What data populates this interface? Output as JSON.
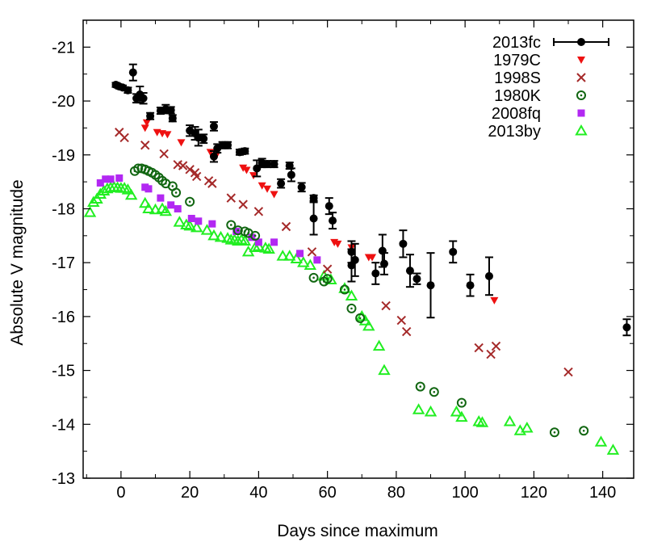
{
  "chart_data": {
    "type": "scatter",
    "xlabel": "Days since maximum",
    "ylabel": "Absolute V magnitude",
    "xlim": [
      -11,
      149
    ],
    "ylim": [
      -13,
      -21.5
    ],
    "y_inverted": true,
    "xticks": [
      0,
      20,
      40,
      60,
      80,
      100,
      120,
      140
    ],
    "yticks": [
      -13,
      -14,
      -15,
      -16,
      -17,
      -18,
      -19,
      -20,
      -21
    ],
    "grid": false,
    "legend_position": "top-right",
    "series": [
      {
        "name": "2013fc",
        "marker": "filled-circle-errorbar",
        "color": "#000000",
        "points": [
          {
            "x": -1.5,
            "y": -20.3,
            "err": 0.04
          },
          {
            "x": -0.5,
            "y": -20.27,
            "err": 0.04
          },
          {
            "x": 0.5,
            "y": -20.25,
            "err": 0.04
          },
          {
            "x": 2,
            "y": -20.2,
            "err": 0.05
          },
          {
            "x": 3.5,
            "y": -20.53,
            "err": 0.15
          },
          {
            "x": 4.5,
            "y": -20.05,
            "err": 0.08
          },
          {
            "x": 5.5,
            "y": -20.12,
            "err": 0.15
          },
          {
            "x": 6.5,
            "y": -20.05,
            "err": 0.1
          },
          {
            "x": 8.5,
            "y": -19.72,
            "err": 0.06
          },
          {
            "x": 11.5,
            "y": -19.82,
            "err": 0.06
          },
          {
            "x": 13,
            "y": -19.85,
            "err": 0.08
          },
          {
            "x": 14.5,
            "y": -19.83,
            "err": 0.06
          },
          {
            "x": 15,
            "y": -19.68,
            "err": 0.06
          },
          {
            "x": 20,
            "y": -19.45,
            "err": 0.1
          },
          {
            "x": 21.5,
            "y": -19.4,
            "err": 0.12
          },
          {
            "x": 22.5,
            "y": -19.32,
            "err": 0.15
          },
          {
            "x": 24,
            "y": -19.3,
            "err": 0.08
          },
          {
            "x": 27,
            "y": -19.53,
            "err": 0.08
          },
          {
            "x": 27,
            "y": -18.97,
            "err": 0.1
          },
          {
            "x": 28,
            "y": -19.12,
            "err": 0.08
          },
          {
            "x": 29.5,
            "y": -19.18,
            "err": 0.06
          },
          {
            "x": 31,
            "y": -19.18,
            "err": 0.06
          },
          {
            "x": 34.5,
            "y": -19.05,
            "err": 0.05
          },
          {
            "x": 36,
            "y": -19.07,
            "err": 0.05
          },
          {
            "x": 39.5,
            "y": -18.75,
            "err": 0.15
          },
          {
            "x": 41,
            "y": -18.85,
            "err": 0.08
          },
          {
            "x": 42.5,
            "y": -18.83,
            "err": 0.06
          },
          {
            "x": 44.5,
            "y": -18.83,
            "err": 0.06
          },
          {
            "x": 46.5,
            "y": -18.47,
            "err": 0.08
          },
          {
            "x": 49,
            "y": -18.8,
            "err": 0.06
          },
          {
            "x": 49.5,
            "y": -18.63,
            "err": 0.12
          },
          {
            "x": 52.5,
            "y": -18.4,
            "err": 0.08
          },
          {
            "x": 56,
            "y": -18.2,
            "err": 0.05
          },
          {
            "x": 56,
            "y": -17.82,
            "err": 0.3
          },
          {
            "x": 60.5,
            "y": -18.05,
            "err": 0.15
          },
          {
            "x": 61.5,
            "y": -17.78,
            "err": 0.15
          },
          {
            "x": 67,
            "y": -17.2,
            "err": 0.2
          },
          {
            "x": 67,
            "y": -16.95,
            "err": 0.3
          },
          {
            "x": 68,
            "y": -17.05,
            "err": 0.3
          },
          {
            "x": 74,
            "y": -16.8,
            "err": 0.2
          },
          {
            "x": 76,
            "y": -17.22,
            "err": 0.3
          },
          {
            "x": 76.5,
            "y": -16.98,
            "err": 0.2
          },
          {
            "x": 82,
            "y": -17.35,
            "err": 0.25
          },
          {
            "x": 84,
            "y": -16.85,
            "err": 0.3
          },
          {
            "x": 86,
            "y": -16.7,
            "err": 0.1
          },
          {
            "x": 90,
            "y": -16.58,
            "err": 0.6
          },
          {
            "x": 96.5,
            "y": -17.2,
            "err": 0.2
          },
          {
            "x": 101.5,
            "y": -16.58,
            "err": 0.2
          },
          {
            "x": 107,
            "y": -16.75,
            "err": 0.35
          },
          {
            "x": 147,
            "y": -15.8,
            "err": 0.15
          }
        ]
      },
      {
        "name": "1979C",
        "marker": "filled-triangle-down",
        "color": "#ee1111",
        "points": [
          {
            "x": 7,
            "y": -19.5
          },
          {
            "x": 7.5,
            "y": -19.6
          },
          {
            "x": 10.5,
            "y": -19.42
          },
          {
            "x": 12,
            "y": -19.4
          },
          {
            "x": 13.5,
            "y": -19.38
          },
          {
            "x": 17.5,
            "y": -19.23
          },
          {
            "x": 26,
            "y": -19.05
          },
          {
            "x": 27.5,
            "y": -18.97
          },
          {
            "x": 35.5,
            "y": -18.76
          },
          {
            "x": 36.5,
            "y": -18.72
          },
          {
            "x": 38.5,
            "y": -18.62
          },
          {
            "x": 41,
            "y": -18.43
          },
          {
            "x": 42.5,
            "y": -18.37
          },
          {
            "x": 44.5,
            "y": -18.27
          },
          {
            "x": 62,
            "y": -17.38
          },
          {
            "x": 63,
            "y": -17.35
          },
          {
            "x": 67,
            "y": -17.28
          },
          {
            "x": 72,
            "y": -17.1
          },
          {
            "x": 73,
            "y": -17.1
          },
          {
            "x": 108.5,
            "y": -16.3
          }
        ]
      },
      {
        "name": "1998S",
        "marker": "cross",
        "color": "#a52a2a",
        "points": [
          {
            "x": -0.5,
            "y": -19.42
          },
          {
            "x": 1,
            "y": -19.32
          },
          {
            "x": 7,
            "y": -19.18
          },
          {
            "x": 12.5,
            "y": -19.02
          },
          {
            "x": 16.5,
            "y": -18.82
          },
          {
            "x": 18,
            "y": -18.8
          },
          {
            "x": 20,
            "y": -18.73
          },
          {
            "x": 21.5,
            "y": -18.67
          },
          {
            "x": 22,
            "y": -18.6
          },
          {
            "x": 25.5,
            "y": -18.52
          },
          {
            "x": 26.5,
            "y": -18.47
          },
          {
            "x": 32,
            "y": -18.2
          },
          {
            "x": 35.5,
            "y": -18.08
          },
          {
            "x": 40,
            "y": -17.95
          },
          {
            "x": 48,
            "y": -17.67
          },
          {
            "x": 55.5,
            "y": -17.2
          },
          {
            "x": 60,
            "y": -16.88
          },
          {
            "x": 77,
            "y": -16.2
          },
          {
            "x": 81.5,
            "y": -15.93
          },
          {
            "x": 83,
            "y": -15.72
          },
          {
            "x": 104,
            "y": -15.42
          },
          {
            "x": 107.5,
            "y": -15.3
          },
          {
            "x": 109,
            "y": -15.45
          },
          {
            "x": 130,
            "y": -14.97
          }
        ]
      },
      {
        "name": "1980K",
        "marker": "dotted-circle",
        "color": "#116611",
        "points": [
          {
            "x": 4,
            "y": -18.7
          },
          {
            "x": 5,
            "y": -18.75
          },
          {
            "x": 6,
            "y": -18.75
          },
          {
            "x": 7,
            "y": -18.73
          },
          {
            "x": 8,
            "y": -18.7
          },
          {
            "x": 9,
            "y": -18.67
          },
          {
            "x": 10,
            "y": -18.63
          },
          {
            "x": 11,
            "y": -18.58
          },
          {
            "x": 12,
            "y": -18.52
          },
          {
            "x": 13,
            "y": -18.47
          },
          {
            "x": 15,
            "y": -18.42
          },
          {
            "x": 16,
            "y": -18.3
          },
          {
            "x": 20,
            "y": -18.13
          },
          {
            "x": 32,
            "y": -17.7
          },
          {
            "x": 34,
            "y": -17.6
          },
          {
            "x": 36,
            "y": -17.58
          },
          {
            "x": 37,
            "y": -17.55
          },
          {
            "x": 39,
            "y": -17.5
          },
          {
            "x": 56,
            "y": -16.72
          },
          {
            "x": 59,
            "y": -16.65
          },
          {
            "x": 60,
            "y": -16.7
          },
          {
            "x": 65,
            "y": -16.5
          },
          {
            "x": 67,
            "y": -16.15
          },
          {
            "x": 69.5,
            "y": -15.97
          },
          {
            "x": 87,
            "y": -14.7
          },
          {
            "x": 91,
            "y": -14.6
          },
          {
            "x": 99,
            "y": -14.4
          },
          {
            "x": 126,
            "y": -13.85
          },
          {
            "x": 134.5,
            "y": -13.88
          }
        ]
      },
      {
        "name": "2008fq",
        "marker": "filled-square",
        "color": "#b228f2",
        "points": [
          {
            "x": -6,
            "y": -18.48
          },
          {
            "x": -4.5,
            "y": -18.55
          },
          {
            "x": -3,
            "y": -18.55
          },
          {
            "x": -0.5,
            "y": -18.57
          },
          {
            "x": 7,
            "y": -18.4
          },
          {
            "x": 8,
            "y": -18.37
          },
          {
            "x": 11.5,
            "y": -18.2
          },
          {
            "x": 14.5,
            "y": -18.07
          },
          {
            "x": 16.5,
            "y": -18.0
          },
          {
            "x": 20.5,
            "y": -17.82
          },
          {
            "x": 22.5,
            "y": -17.77
          },
          {
            "x": 26.5,
            "y": -17.72
          },
          {
            "x": 33.5,
            "y": -17.58
          },
          {
            "x": 38,
            "y": -17.47
          },
          {
            "x": 40,
            "y": -17.38
          },
          {
            "x": 44.5,
            "y": -17.38
          },
          {
            "x": 52,
            "y": -17.17
          },
          {
            "x": 57,
            "y": -17.05
          }
        ]
      },
      {
        "name": "2013by",
        "marker": "open-triangle",
        "color": "#22ee22",
        "points": [
          {
            "x": -9,
            "y": -17.93
          },
          {
            "x": -8,
            "y": -18.12
          },
          {
            "x": -7,
            "y": -18.18
          },
          {
            "x": -6,
            "y": -18.27
          },
          {
            "x": -5,
            "y": -18.33
          },
          {
            "x": -4,
            "y": -18.37
          },
          {
            "x": -3,
            "y": -18.39
          },
          {
            "x": -2,
            "y": -18.4
          },
          {
            "x": -1,
            "y": -18.39
          },
          {
            "x": 0,
            "y": -18.38
          },
          {
            "x": 1,
            "y": -18.38
          },
          {
            "x": 2,
            "y": -18.35
          },
          {
            "x": 3,
            "y": -18.25
          },
          {
            "x": 7,
            "y": -18.1
          },
          {
            "x": 8,
            "y": -18.0
          },
          {
            "x": 10,
            "y": -17.98
          },
          {
            "x": 12,
            "y": -18.0
          },
          {
            "x": 13,
            "y": -17.95
          },
          {
            "x": 17,
            "y": -17.75
          },
          {
            "x": 19,
            "y": -17.7
          },
          {
            "x": 20,
            "y": -17.68
          },
          {
            "x": 22,
            "y": -17.65
          },
          {
            "x": 25,
            "y": -17.6
          },
          {
            "x": 27,
            "y": -17.5
          },
          {
            "x": 29,
            "y": -17.47
          },
          {
            "x": 31,
            "y": -17.45
          },
          {
            "x": 32,
            "y": -17.42
          },
          {
            "x": 33,
            "y": -17.42
          },
          {
            "x": 34,
            "y": -17.4
          },
          {
            "x": 35,
            "y": -17.42
          },
          {
            "x": 36,
            "y": -17.4
          },
          {
            "x": 37,
            "y": -17.2
          },
          {
            "x": 39,
            "y": -17.28
          },
          {
            "x": 40,
            "y": -17.3
          },
          {
            "x": 42,
            "y": -17.27
          },
          {
            "x": 43,
            "y": -17.25
          },
          {
            "x": 47,
            "y": -17.12
          },
          {
            "x": 49,
            "y": -17.12
          },
          {
            "x": 51,
            "y": -17.07
          },
          {
            "x": 53,
            "y": -17.0
          },
          {
            "x": 55,
            "y": -16.95
          },
          {
            "x": 59,
            "y": -16.75
          },
          {
            "x": 61,
            "y": -16.68
          },
          {
            "x": 65,
            "y": -16.52
          },
          {
            "x": 67,
            "y": -16.38
          },
          {
            "x": 70,
            "y": -16.0
          },
          {
            "x": 71,
            "y": -15.92
          },
          {
            "x": 72,
            "y": -15.82
          },
          {
            "x": 75,
            "y": -15.45
          },
          {
            "x": 76.5,
            "y": -15.0
          },
          {
            "x": 86.5,
            "y": -14.27
          },
          {
            "x": 90,
            "y": -14.23
          },
          {
            "x": 97.5,
            "y": -14.23
          },
          {
            "x": 99,
            "y": -14.13
          },
          {
            "x": 104,
            "y": -14.05
          },
          {
            "x": 105,
            "y": -14.03
          },
          {
            "x": 113,
            "y": -14.05
          },
          {
            "x": 116,
            "y": -13.88
          },
          {
            "x": 118,
            "y": -13.93
          },
          {
            "x": 139.5,
            "y": -13.67
          },
          {
            "x": 143,
            "y": -13.52
          }
        ]
      }
    ]
  }
}
